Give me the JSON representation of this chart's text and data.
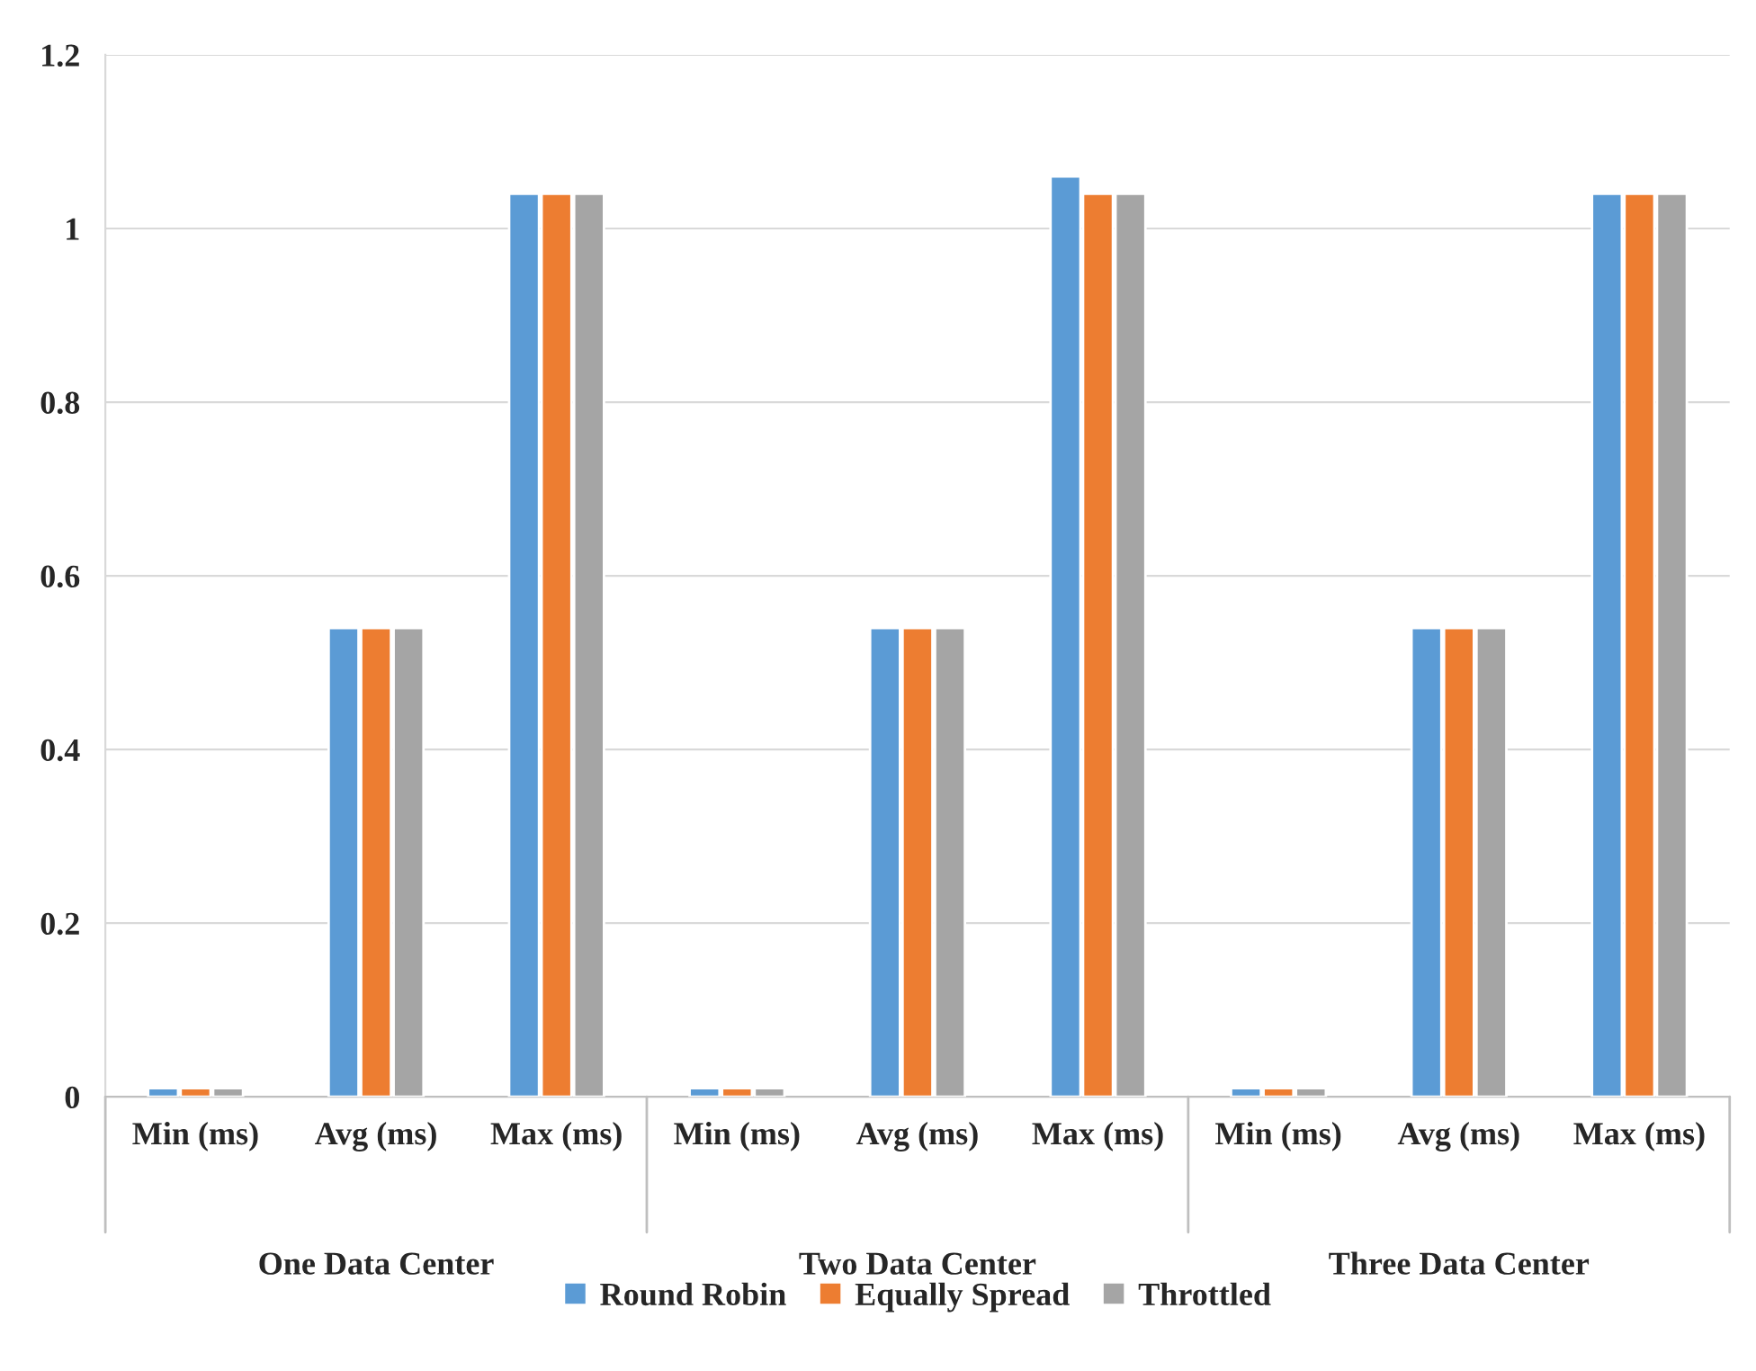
{
  "chart_data": {
    "type": "bar",
    "categories": [
      "Min (ms)",
      "Avg (ms)",
      "Max (ms)",
      "Min (ms)",
      "Avg (ms)",
      "Max (ms)",
      "Min (ms)",
      "Avg (ms)",
      "Max (ms)"
    ],
    "series": [
      {
        "name": "Round Robin",
        "color": "#5b9bd5",
        "values": [
          0.01,
          0.54,
          1.04,
          0.01,
          0.54,
          1.06,
          0.01,
          0.54,
          1.04
        ]
      },
      {
        "name": "Equally Spread",
        "color": "#ed7d31",
        "values": [
          0.01,
          0.54,
          1.04,
          0.01,
          0.54,
          1.04,
          0.01,
          0.54,
          1.04
        ]
      },
      {
        "name": "Throttled",
        "color": "#a5a5a5",
        "values": [
          0.01,
          0.54,
          1.04,
          0.01,
          0.54,
          1.04,
          0.01,
          0.54,
          1.04
        ]
      }
    ],
    "annotations": [
      "One Data Center",
      "Two Data Center",
      "Three Data Center"
    ],
    "ylim": [
      0,
      1.2
    ],
    "yticks": [
      0,
      0.2,
      0.4,
      0.6,
      0.8,
      1,
      1.2
    ],
    "grid": "y",
    "legend": "bottom"
  }
}
